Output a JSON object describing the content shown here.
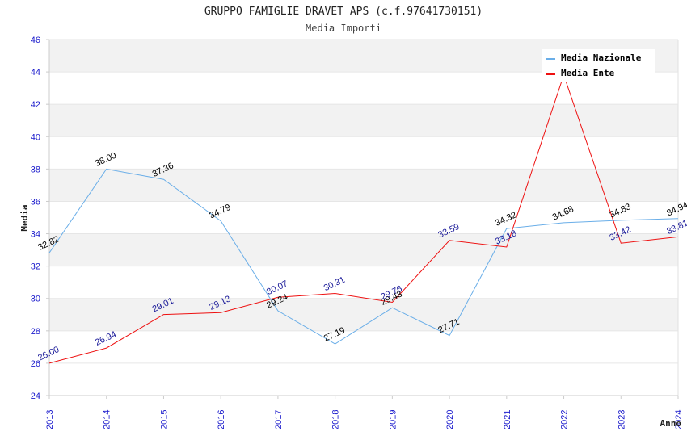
{
  "chart_data": {
    "type": "line",
    "title": "GRUPPO FAMIGLIE DRAVET APS (c.f.97641730151)",
    "subtitle": "Media Importi",
    "xlabel": "Anno",
    "ylabel": "Media",
    "ylim": [
      24,
      46
    ],
    "yticks": [
      "24",
      "26",
      "28",
      "30",
      "32",
      "34",
      "36",
      "38",
      "40",
      "42",
      "44",
      "46"
    ],
    "categories": [
      "2013",
      "2014",
      "2015",
      "2016",
      "2017",
      "2018",
      "2019",
      "2020",
      "2021",
      "2022",
      "2023",
      "2024"
    ],
    "grid": "horizontal alternating bands",
    "legend_position": "top-right",
    "series": [
      {
        "name": "Media Nazionale",
        "color": "#6aaee8",
        "label_color": "#000000",
        "values": [
          32.82,
          38.0,
          37.36,
          34.79,
          29.24,
          27.19,
          29.43,
          27.71,
          34.32,
          34.68,
          34.83,
          34.94
        ],
        "labels": [
          "32.82",
          "38.00",
          "37.36",
          "34.79",
          "29.24",
          "27.19",
          "29.43",
          "27.71",
          "34.32",
          "34.68",
          "34.83",
          "34.94"
        ]
      },
      {
        "name": "Media Ente",
        "color": "#ee1111",
        "label_color": "#1a1a99",
        "values": [
          26.0,
          26.94,
          29.01,
          29.13,
          30.07,
          30.31,
          29.76,
          33.59,
          33.18,
          43.81,
          33.42,
          33.81
        ],
        "labels": [
          "26.00",
          "26.94",
          "29.01",
          "29.13",
          "30.07",
          "30.31",
          "29.76",
          "33.59",
          "33.18",
          "",
          "33.42",
          "33.81"
        ]
      }
    ]
  }
}
